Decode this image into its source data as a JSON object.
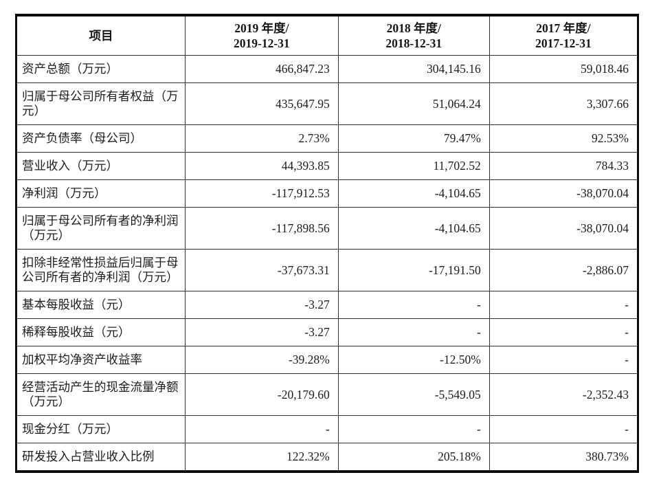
{
  "colors": {
    "outer_border": "#0b0b0b",
    "grid_line": "#2f2f2f",
    "text": "#1c1c1c",
    "background": "#ffffff"
  },
  "table": {
    "columns": [
      {
        "title": "项目"
      },
      {
        "line1": "2019 年度/",
        "line2": "2019-12-31"
      },
      {
        "line1": "2018 年度/",
        "line2": "2018-12-31"
      },
      {
        "line1": "2017 年度/",
        "line2": "2017-12-31"
      }
    ],
    "rows": [
      {
        "label": "资产总额（万元）",
        "values": [
          "466,847.23",
          "304,145.16",
          "59,018.46"
        ]
      },
      {
        "label": "归属于母公司所有者权益（万元）",
        "values": [
          "435,647.95",
          "51,064.24",
          "3,307.66"
        ]
      },
      {
        "label": "资产负债率（母公司）",
        "values": [
          "2.73%",
          "79.47%",
          "92.53%"
        ]
      },
      {
        "label": "营业收入（万元）",
        "values": [
          "44,393.85",
          "11,702.52",
          "784.33"
        ]
      },
      {
        "label": "净利润（万元）",
        "values": [
          "-117,912.53",
          "-4,104.65",
          "-38,070.04"
        ]
      },
      {
        "label": "归属于母公司所有者的净利润（万元）",
        "values": [
          "-117,898.56",
          "-4,104.65",
          "-38,070.04"
        ]
      },
      {
        "label": "扣除非经常性损益后归属于母公司所有者的净利润（万元）",
        "values": [
          "-37,673.31",
          "-17,191.50",
          "-2,886.07"
        ]
      },
      {
        "label": "基本每股收益（元）",
        "values": [
          "-3.27",
          "-",
          "-"
        ]
      },
      {
        "label": "稀释每股收益（元）",
        "values": [
          "-3.27",
          "-",
          "-"
        ]
      },
      {
        "label": "加权平均净资产收益率",
        "values": [
          "-39.28%",
          "-12.50%",
          "-"
        ]
      },
      {
        "label": "经营活动产生的现金流量净额（万元）",
        "values": [
          "-20,179.60",
          "-5,549.05",
          "-2,352.43"
        ]
      },
      {
        "label": "现金分红（万元）",
        "values": [
          "-",
          "-",
          "-"
        ]
      },
      {
        "label": "研发投入占营业收入比例",
        "values": [
          "122.32%",
          "205.18%",
          "380.73%"
        ]
      }
    ]
  }
}
